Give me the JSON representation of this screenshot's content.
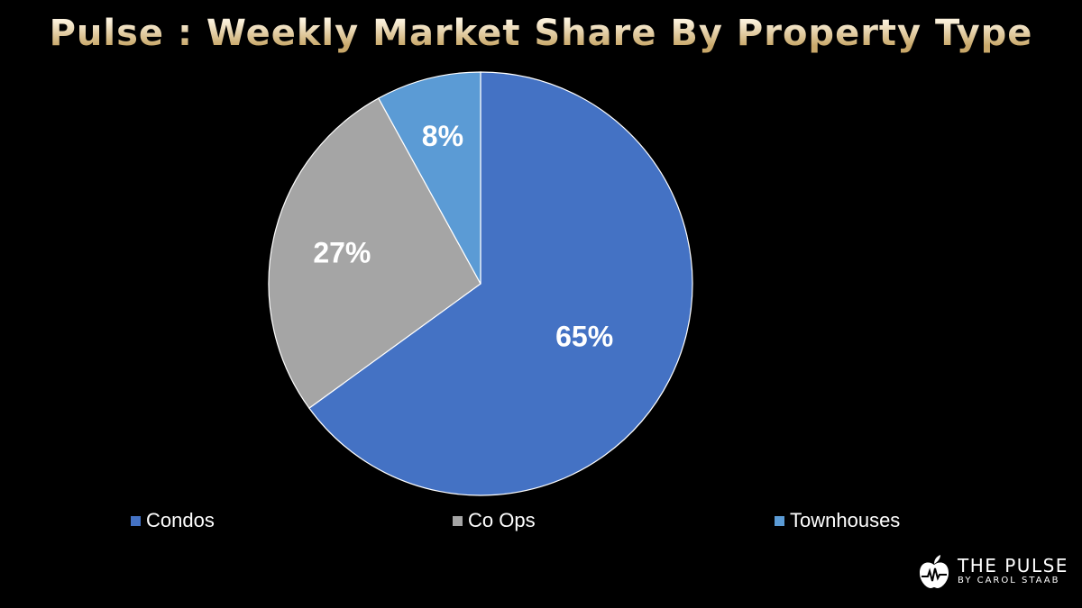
{
  "chart_data": {
    "type": "pie",
    "title": "Pulse : Weekly Market Share By Property Type",
    "categories": [
      "Condos",
      "Co Ops",
      "Townhouses"
    ],
    "values": [
      65,
      27,
      8
    ],
    "data_labels": [
      "65%",
      "27%",
      "8%"
    ],
    "colors": [
      "#4472C4",
      "#A5A5A5",
      "#5B9BD5"
    ],
    "legend_position": "bottom",
    "start_angle_deg": 0,
    "direction": "clockwise"
  },
  "logo": {
    "name": "THE PULSE",
    "tagline": "BY CAROL STAAB",
    "icon": "apple-heartbeat-icon"
  }
}
